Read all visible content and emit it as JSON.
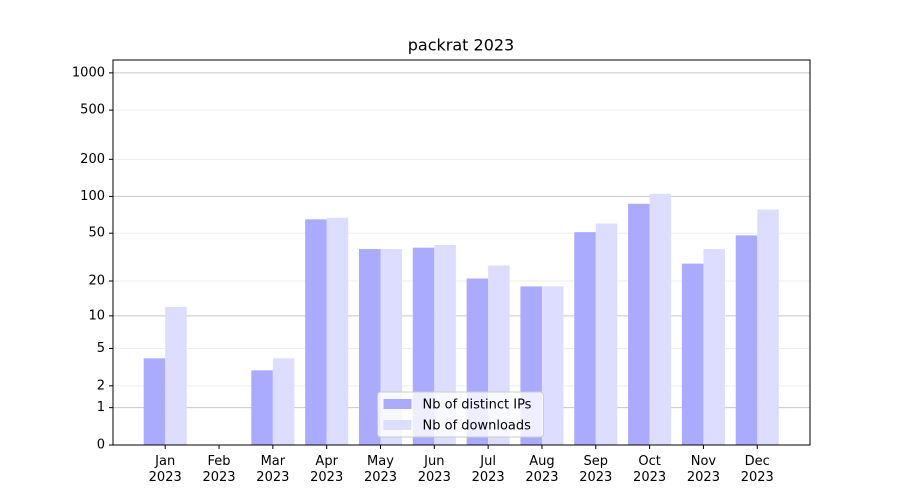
{
  "chart_data": {
    "type": "bar",
    "title": "packrat 2023",
    "categories": [
      "Jan\n2023",
      "Feb\n2023",
      "Mar\n2023",
      "Apr\n2023",
      "May\n2023",
      "Jun\n2023",
      "Jul\n2023",
      "Aug\n2023",
      "Sep\n2023",
      "Oct\n2023",
      "Nov\n2023",
      "Dec\n2023"
    ],
    "series": [
      {
        "name": "Nb of distinct IPs",
        "color": "#aaaaff",
        "values": [
          4,
          0,
          3,
          65,
          37,
          38,
          21,
          18,
          51,
          87,
          28,
          48
        ]
      },
      {
        "name": "Nb of downloads",
        "color": "#ddddff",
        "values": [
          12,
          0,
          4,
          67,
          37,
          40,
          27,
          18,
          60,
          105,
          37,
          78
        ]
      }
    ],
    "y_scale": "log1p",
    "ylim": [
      0,
      1270
    ],
    "yticks": [
      0,
      1,
      2,
      5,
      10,
      20,
      50,
      100,
      200,
      500,
      1000
    ],
    "grid": true,
    "legend": "lower center"
  }
}
